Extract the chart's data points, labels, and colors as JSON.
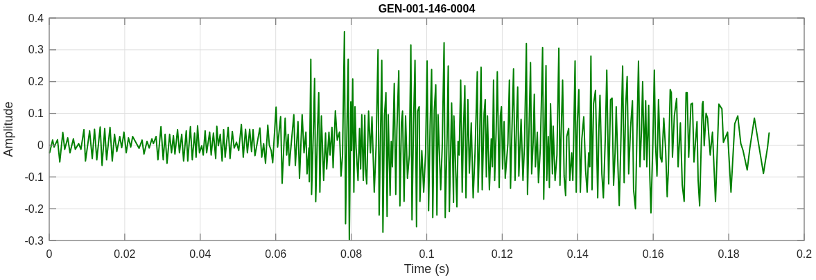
{
  "chart_data": {
    "type": "line",
    "title": "GEN-001-146-0004",
    "xlabel": "Time (s)",
    "ylabel": "Amplitude",
    "xlim": [
      0,
      0.2
    ],
    "ylim": [
      -0.3,
      0.4
    ],
    "xticks": [
      0,
      0.02,
      0.04,
      0.06,
      0.08,
      0.1,
      0.12,
      0.14,
      0.16,
      0.18,
      0.2
    ],
    "yticks": [
      -0.3,
      -0.2,
      -0.1,
      0,
      0.1,
      0.2,
      0.3,
      0.4
    ],
    "grid": true,
    "x": [
      0.0001,
      0.0009,
      0.0013,
      0.0022,
      0.0028,
      0.0036,
      0.0041,
      0.0049,
      0.0055,
      0.0064,
      0.0069,
      0.0078,
      0.0084,
      0.0092,
      0.0096,
      0.0107,
      0.0114,
      0.012,
      0.0126,
      0.0135,
      0.014,
      0.0147,
      0.0152,
      0.0161,
      0.0167,
      0.0173,
      0.0179,
      0.0187,
      0.0192,
      0.0198,
      0.0204,
      0.021,
      0.0216,
      0.0221,
      0.0238,
      0.0246,
      0.0251,
      0.0259,
      0.0265,
      0.0272,
      0.0276,
      0.0283,
      0.0288,
      0.0296,
      0.0302,
      0.0307,
      0.0312,
      0.0319,
      0.0324,
      0.0329,
      0.0333,
      0.034,
      0.0345,
      0.0351,
      0.0356,
      0.0363,
      0.0367,
      0.0374,
      0.0379,
      0.0385,
      0.0389,
      0.0393,
      0.0398,
      0.0404,
      0.0408,
      0.0413,
      0.0417,
      0.0425,
      0.0429,
      0.0435,
      0.0441,
      0.0444,
      0.0448,
      0.0453,
      0.0458,
      0.0462,
      0.0466,
      0.0474,
      0.0479,
      0.0485,
      0.049,
      0.0496,
      0.0502,
      0.0509,
      0.0514,
      0.052,
      0.0525,
      0.0531,
      0.0536,
      0.054,
      0.0545,
      0.0558,
      0.0563,
      0.0568,
      0.0573,
      0.0579,
      0.0583,
      0.0588,
      0.0592,
      0.0601,
      0.0605,
      0.0613,
      0.0617,
      0.0625,
      0.0629,
      0.0633,
      0.0636,
      0.0648,
      0.0652,
      0.0659,
      0.0663,
      0.067,
      0.0675,
      0.068,
      0.0683,
      0.0688,
      0.0689,
      0.0693,
      0.0695,
      0.07,
      0.0703,
      0.0706,
      0.0711,
      0.0714,
      0.0717,
      0.0721,
      0.0727,
      0.0732,
      0.0735,
      0.0741,
      0.0744,
      0.0749,
      0.0752,
      0.0758,
      0.0763,
      0.0769,
      0.0773,
      0.0777,
      0.0782,
      0.0785,
      0.0789,
      0.0792,
      0.0795,
      0.0799,
      0.0801,
      0.0804,
      0.0807,
      0.081,
      0.0813,
      0.0818,
      0.0822,
      0.0825,
      0.0828,
      0.0832,
      0.0836,
      0.0838,
      0.0841,
      0.0846,
      0.0851,
      0.0855,
      0.0861,
      0.0866,
      0.0871,
      0.0874,
      0.0881,
      0.0884,
      0.0888,
      0.0892,
      0.0895,
      0.0898,
      0.0903,
      0.0906,
      0.0909,
      0.0914,
      0.0918,
      0.0921,
      0.0926,
      0.0929,
      0.0933,
      0.0936,
      0.094,
      0.0944,
      0.0949,
      0.0954,
      0.0958,
      0.0961,
      0.0965,
      0.0969,
      0.0973,
      0.0976,
      0.098,
      0.0982,
      0.0987,
      0.0992,
      0.0997,
      0.1001,
      0.1005,
      0.1009,
      0.1013,
      0.1016,
      0.102,
      0.1024,
      0.1027,
      0.103,
      0.1037,
      0.1041,
      0.1046,
      0.1049,
      0.1054,
      0.1057,
      0.106,
      0.1066,
      0.1071,
      0.1072,
      0.108,
      0.1083,
      0.1086,
      0.109,
      0.1094,
      0.1097,
      0.1101,
      0.1104,
      0.1109,
      0.1113,
      0.1118,
      0.1123,
      0.1128,
      0.1134,
      0.1136,
      0.114,
      0.1144,
      0.1147,
      0.1152,
      0.1155,
      0.1158,
      0.1161,
      0.1166,
      0.1171,
      0.1174,
      0.1177,
      0.118,
      0.1184,
      0.1187,
      0.1192,
      0.1195,
      0.1198,
      0.1201,
      0.1205,
      0.1208,
      0.1215,
      0.1219,
      0.1222,
      0.1225,
      0.123,
      0.1234,
      0.1238,
      0.1241,
      0.1244,
      0.125,
      0.1255,
      0.1259,
      0.1264,
      0.1267,
      0.1271,
      0.1275,
      0.1278,
      0.1282,
      0.1285,
      0.1288,
      0.1293,
      0.1296,
      0.1301,
      0.1307,
      0.131,
      0.1316,
      0.1318,
      0.1322,
      0.1325,
      0.1328,
      0.1333,
      0.1335,
      0.134,
      0.1345,
      0.135,
      0.1353,
      0.1356,
      0.136,
      0.1364,
      0.1368,
      0.1371,
      0.1376,
      0.1379,
      0.1384,
      0.1387,
      0.1389,
      0.1393,
      0.1396,
      0.1399,
      0.1403,
      0.1407,
      0.1411,
      0.1416,
      0.1421,
      0.1425,
      0.1429,
      0.1432,
      0.1435,
      0.1438,
      0.1442,
      0.1447,
      0.145,
      0.1453,
      0.1456,
      0.1459,
      0.1464,
      0.1468,
      0.1473,
      0.1477,
      0.1482,
      0.1487,
      0.1491,
      0.1495,
      0.1499,
      0.1502,
      0.1507,
      0.151,
      0.1514,
      0.1519,
      0.1523,
      0.1527,
      0.1531,
      0.1535,
      0.154,
      0.1545,
      0.1548,
      0.1553,
      0.1557,
      0.1561,
      0.1565,
      0.1569,
      0.1572,
      0.1576,
      0.158,
      0.1583,
      0.1588,
      0.1591,
      0.1594,
      0.1599,
      0.1603,
      0.1606,
      0.161,
      0.1614,
      0.1619,
      0.1623,
      0.1628,
      0.1633,
      0.1637,
      0.164,
      0.1645,
      0.1648,
      0.1651,
      0.1656,
      0.1662,
      0.1666,
      0.1672,
      0.1677,
      0.1682,
      0.1687,
      0.169,
      0.1694,
      0.17,
      0.1704,
      0.1708,
      0.1716,
      0.1719,
      0.1723,
      0.173,
      0.1732,
      0.1735,
      0.174,
      0.1744,
      0.1751,
      0.1757,
      0.1765,
      0.1774,
      0.1782,
      0.1786,
      0.1797,
      0.1806,
      0.1816,
      0.1824,
      0.1832,
      0.1838,
      0.1849,
      0.1856,
      0.1868,
      0.1879,
      0.1892,
      0.1903,
      0.1907
    ],
    "series": [
      {
        "color": "#008000",
        "values": [
          -0.024,
          0.016,
          -0.006,
          0.017,
          -0.053,
          0.04,
          -0.013,
          0.023,
          -0.024,
          0.02,
          -0.013,
          0.005,
          -0.013,
          0.049,
          -0.05,
          0.045,
          -0.042,
          0.05,
          -0.046,
          0.057,
          -0.064,
          0.052,
          -0.046,
          0.056,
          -0.05,
          0.034,
          -0.02,
          0.027,
          -0.008,
          0.041,
          -0.024,
          0.023,
          -0.006,
          0.027,
          -0.01,
          0.016,
          -0.028,
          0.012,
          -0.009,
          0.02,
          0.005,
          0.027,
          -0.046,
          0.058,
          -0.046,
          0.034,
          -0.057,
          0.034,
          -0.024,
          0.03,
          -0.028,
          0.049,
          -0.024,
          0.034,
          -0.05,
          0.045,
          -0.05,
          0.058,
          -0.046,
          0.038,
          -0.038,
          0.061,
          -0.024,
          -0.002,
          -0.031,
          0.045,
          -0.024,
          0.041,
          -0.031,
          0.038,
          -0.042,
          0.059,
          -0.002,
          0.034,
          -0.05,
          0.049,
          -0.038,
          0.056,
          -0.042,
          0.043,
          -0.009,
          0.009,
          -0.017,
          0.065,
          -0.038,
          0.05,
          -0.024,
          0.05,
          -0.02,
          0.049,
          -0.033,
          0.054,
          -0.038,
          0.005,
          -0.057,
          0.063,
          0,
          -0.017,
          -0.055,
          0.12,
          -0.006,
          0.09,
          -0.12,
          0.085,
          -0.031,
          0.034,
          -0.064,
          0.096,
          -0.064,
          0.074,
          -0.104,
          0.096,
          -0.024,
          0.041,
          -0.09,
          -0.009,
          -0.115,
          0.27,
          -0.155,
          0.056,
          0.21,
          -0.178,
          0.063,
          0.165,
          -0.148,
          0.092,
          -0.111,
          0.038,
          -0.075,
          0.041,
          -0.031,
          0.056,
          -0.071,
          0.108,
          0.016,
          0.041,
          -0.097,
          -0.031,
          0.357,
          -0.247,
          0.074,
          0.27,
          -0.297,
          0.136,
          -0.017,
          0.208,
          -0.148,
          0.121,
          -0.009,
          -0.111,
          0.052,
          -0.075,
          0.096,
          -0.111,
          0.094,
          -0.075,
          -0.122,
          0.107,
          -0.024,
          0.089,
          -0.148,
          -0.002,
          0.3,
          -0.22,
          0.267,
          -0.274,
          0.092,
          0.165,
          -0.224,
          0.096,
          -0.158,
          0.012,
          -0.068,
          0.194,
          -0.155,
          0.049,
          0.234,
          -0.191,
          0.07,
          0.107,
          -0.177,
          0.092,
          -0.104,
          -0.031,
          0.315,
          -0.235,
          0.063,
          0.267,
          -0.257,
          0.107,
          0.121,
          -0.177,
          -0.017,
          -0.148,
          -0.024,
          0.265,
          -0.206,
          0.063,
          0.238,
          -0.228,
          0.11,
          0.19,
          -0.22,
          0.096,
          -0.14,
          -0.009,
          0.322,
          -0.228,
          0.027,
          0.249,
          -0.209,
          0.133,
          -0.18,
          0.092,
          -0.194,
          0.012,
          -0.031,
          0.205,
          -0.148,
          0.034,
          0.187,
          -0.166,
          0.143,
          -0.088,
          0.07,
          -0.166,
          -0.024,
          0.231,
          -0.148,
          0.009,
          0.245,
          -0.14,
          0.1,
          0.143,
          -0.1,
          0.092,
          -0.14,
          0.02,
          -0.068,
          0.205,
          -0.111,
          0.049,
          0.231,
          -0.133,
          0.092,
          0.121,
          -0.075,
          0.074,
          -0.104,
          0.005,
          0.205,
          -0.136,
          0.012,
          0.24,
          -0.111,
          0.078,
          0.183,
          -0.097,
          0.081,
          -0.111,
          -0.002,
          0.32,
          -0.155,
          0.049,
          0.26,
          -0.09,
          0.012,
          0.16,
          -0.068,
          0.041,
          -0.118,
          -0.009,
          0.307,
          -0.17,
          0.25,
          -0.111,
          0.027,
          -0.133,
          0.13,
          -0.09,
          0.06,
          -0.111,
          -0.031,
          0.305,
          -0.126,
          0.034,
          0.205,
          -0.097,
          -0.159,
          0.027,
          0.052,
          -0.111,
          -0.024,
          -0.111,
          -0.002,
          0.265,
          -0.148,
          0.07,
          0.175,
          -0.148,
          0.02,
          0.089,
          -0.082,
          -0.148,
          -0.024,
          -0.068,
          0.28,
          -0.14,
          0.13,
          0.172,
          0.005,
          -0.166,
          0.049,
          0.157,
          -0.09,
          -0.166,
          0.02,
          0.236,
          -0.122,
          0.143,
          0.148,
          -0.126,
          -0.024,
          0.121,
          -0.082,
          -0.19,
          -0.009,
          0.249,
          -0.118,
          0.121,
          0.216,
          -0.09,
          0.056,
          0.14,
          -0.14,
          -0.2,
          0.041,
          0.264,
          -0.068,
          0.049,
          0.2,
          -0.046,
          0.14,
          -0.068,
          0.125,
          -0.097,
          -0.213,
          0.005,
          0.236,
          0.005,
          -0.097,
          0.143,
          -0.038,
          -0.053,
          0.085,
          -0.017,
          -0.162,
          -0.082,
          0.175,
          0.165,
          -0.038,
          0.092,
          0.147,
          -0.068,
          0.07,
          -0.126,
          -0.177,
          0.165,
          0.165,
          -0.038,
          0.129,
          0.132,
          -0.053,
          0.074,
          -0.111,
          -0.191,
          0.129,
          0.137,
          -0.002,
          0.1,
          0.085,
          -0.031,
          0.041,
          -0.177,
          0.129,
          0.114,
          0.009,
          0.041,
          -0.148,
          0.067,
          0.092,
          0.005,
          -0.017,
          -0.078,
          -0.009,
          0.085,
          0.005,
          -0.089,
          -0.006,
          0.038
        ]
      }
    ]
  }
}
